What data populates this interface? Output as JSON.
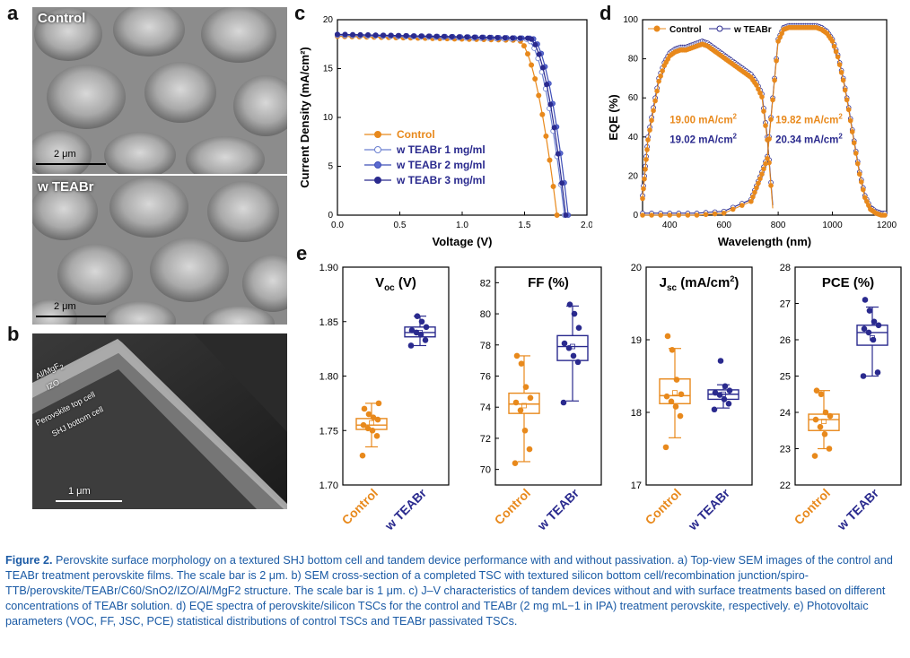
{
  "panels": {
    "a": "a",
    "b": "b",
    "c": "c",
    "d": "d",
    "e": "e"
  },
  "sem_a": {
    "top_label": "Control",
    "bottom_label": "w TEABr",
    "scale_top": "2 μm",
    "scale_bottom": "2 μm"
  },
  "sem_b": {
    "layer1": "Al/MgF",
    "layer1_sub": "2",
    "layer2": "IZO",
    "layer3": "Perovskite top cell",
    "layer4": "SHJ bottom cell",
    "scale": "1 μm"
  },
  "colors": {
    "orange": "#e8891c",
    "blue": "#2a2a8e",
    "lightblue": "#6a7fd0",
    "midblue": "#3f4fb8"
  },
  "chart_data": [
    {
      "id": "c",
      "type": "line",
      "xlabel": "Voltage (V)",
      "ylabel": "Current Density (mA/cm²)",
      "xlim": [
        0,
        2.0
      ],
      "ylim": [
        0,
        20
      ],
      "xticks": [
        "0.0",
        "0.5",
        "1.0",
        "1.5",
        "2.0"
      ],
      "yticks": [
        "0",
        "5",
        "10",
        "15",
        "20"
      ],
      "legend": "center-left",
      "series": [
        {
          "name": "Control",
          "jsc": 18.3,
          "voc": 1.76,
          "knee": 1.45
        },
        {
          "name": "w TEABr 1 mg/ml",
          "jsc": 18.4,
          "voc": 1.82,
          "knee": 1.52
        },
        {
          "name": "w TEABr 2 mg/ml",
          "jsc": 18.5,
          "voc": 1.85,
          "knee": 1.56
        },
        {
          "name": "w TEABr 3 mg/ml",
          "jsc": 18.5,
          "voc": 1.83,
          "knee": 1.54
        }
      ]
    },
    {
      "id": "d",
      "type": "line",
      "xlabel": "Wavelength (nm)",
      "ylabel": "EQE (%)",
      "xlim": [
        300,
        1200
      ],
      "ylim": [
        0,
        100
      ],
      "xticks": [
        "400",
        "600",
        "800",
        "1000",
        "1200"
      ],
      "yticks": [
        "0",
        "20",
        "40",
        "60",
        "80",
        "100"
      ],
      "legend": "top-left",
      "series": [
        {
          "name": "Control"
        },
        {
          "name": "w TEABr"
        }
      ],
      "top_cell": {
        "x": [
          300,
          310,
          320,
          340,
          360,
          380,
          400,
          420,
          440,
          460,
          480,
          500,
          520,
          540,
          560,
          580,
          600,
          620,
          640,
          660,
          680,
          700,
          720,
          740,
          760,
          780
        ],
        "y": [
          10,
          25,
          40,
          55,
          70,
          78,
          83,
          85,
          86,
          86,
          87,
          88,
          89,
          88,
          86,
          84,
          82,
          80,
          78,
          76,
          74,
          72,
          68,
          62,
          40,
          5
        ]
      },
      "bottom_cell": {
        "x": [
          300,
          400,
          500,
          600,
          700,
          720,
          740,
          760,
          780,
          800,
          820,
          840,
          860,
          880,
          900,
          920,
          940,
          960,
          980,
          1000,
          1020,
          1040,
          1060,
          1080,
          1100,
          1120,
          1140,
          1160,
          1180,
          1200
        ],
        "y": [
          1,
          1,
          1,
          2,
          8,
          15,
          22,
          30,
          60,
          90,
          96,
          97,
          97,
          97,
          97,
          97,
          97,
          96,
          94,
          90,
          82,
          70,
          55,
          38,
          22,
          10,
          4,
          2,
          1,
          1
        ]
      },
      "annotations": [
        {
          "text": "19.00 mA/cm",
          "sup": "2",
          "color": "orange"
        },
        {
          "text": "19.02 mA/cm",
          "sup": "2",
          "color": "blue"
        },
        {
          "text": "19.82 mA/cm",
          "sup": "2",
          "color": "orange"
        },
        {
          "text": "20.34 mA/cm",
          "sup": "2",
          "color": "blue"
        }
      ]
    },
    {
      "id": "e-voc",
      "type": "box",
      "title": "V",
      "title_sub": "oc",
      "title_unit": " (V)",
      "ylim": [
        1.7,
        1.9
      ],
      "yticks": [
        "1.70",
        "1.75",
        "1.80",
        "1.85",
        "1.90"
      ],
      "categories": [
        "Control",
        "w TEABr"
      ],
      "boxes": [
        {
          "q1": 1.751,
          "median": 1.755,
          "q3": 1.761,
          "whisk_lo": 1.735,
          "whisk_hi": 1.775,
          "mean": 1.757,
          "points": [
            1.727,
            1.745,
            1.75,
            1.752,
            1.755,
            1.76,
            1.762,
            1.765,
            1.77,
            1.775
          ]
        },
        {
          "q1": 1.836,
          "median": 1.84,
          "q3": 1.845,
          "whisk_lo": 1.828,
          "whisk_hi": 1.855,
          "mean": 1.84,
          "points": [
            1.828,
            1.833,
            1.838,
            1.84,
            1.842,
            1.845,
            1.85,
            1.855
          ]
        }
      ]
    },
    {
      "id": "e-ff",
      "type": "box",
      "title": "FF (%)",
      "ylim": [
        69,
        83
      ],
      "yticks": [
        "70",
        "72",
        "74",
        "76",
        "78",
        "80",
        "82"
      ],
      "categories": [
        "Control",
        "w TEABr"
      ],
      "boxes": [
        {
          "q1": 73.6,
          "median": 74.2,
          "q3": 74.9,
          "whisk_lo": 70.5,
          "whisk_hi": 77.3,
          "mean": 74.1,
          "points": [
            70.4,
            71.3,
            72.5,
            73.8,
            74.3,
            74.6,
            75.3,
            76.8,
            77.3
          ]
        },
        {
          "q1": 77.0,
          "median": 77.9,
          "q3": 78.6,
          "whisk_lo": 74.4,
          "whisk_hi": 80.5,
          "mean": 77.9,
          "points": [
            74.3,
            76.9,
            77.3,
            77.8,
            78.1,
            79.1,
            80.0,
            80.6
          ]
        }
      ]
    },
    {
      "id": "e-jsc",
      "type": "box",
      "title": "J",
      "title_sub": "sc",
      "title_unit": " (mA/cm",
      "title_sup": "2",
      "title_end": ")",
      "ylim": [
        17,
        20
      ],
      "yticks": [
        "17",
        "18",
        "19",
        "20"
      ],
      "categories": [
        "Control",
        "w TEABr"
      ],
      "boxes": [
        {
          "q1": 18.12,
          "median": 18.23,
          "q3": 18.46,
          "whisk_lo": 17.65,
          "whisk_hi": 18.88,
          "mean": 18.27,
          "points": [
            17.52,
            17.95,
            18.08,
            18.15,
            18.22,
            18.25,
            18.45,
            18.86,
            19.05
          ]
        },
        {
          "q1": 18.18,
          "median": 18.25,
          "q3": 18.31,
          "whisk_lo": 18.06,
          "whisk_hi": 18.38,
          "mean": 18.25,
          "points": [
            18.04,
            18.12,
            18.18,
            18.24,
            18.27,
            18.3,
            18.36,
            18.71
          ]
        }
      ]
    },
    {
      "id": "e-pce",
      "type": "box",
      "title": "PCE (%)",
      "ylim": [
        22,
        28
      ],
      "yticks": [
        "22",
        "23",
        "24",
        "25",
        "26",
        "27",
        "28"
      ],
      "categories": [
        "Control",
        "w TEABr"
      ],
      "boxes": [
        {
          "q1": 23.5,
          "median": 23.8,
          "q3": 23.95,
          "whisk_lo": 23.0,
          "whisk_hi": 24.6,
          "mean": 23.75,
          "points": [
            22.8,
            23.0,
            23.4,
            23.6,
            23.8,
            23.9,
            24.0,
            24.5,
            24.6
          ]
        },
        {
          "q1": 25.85,
          "median": 26.2,
          "q3": 26.4,
          "whisk_lo": 25.0,
          "whisk_hi": 26.9,
          "mean": 26.05,
          "points": [
            25.0,
            25.1,
            26.0,
            26.2,
            26.3,
            26.4,
            26.5,
            26.8,
            27.1
          ]
        }
      ]
    }
  ],
  "caption": {
    "label": "Figure 2.",
    "text": "Perovskite surface morphology on a textured SHJ bottom cell and tandem device performance with and without passivation. a) Top-view SEM images of the control and TEABr treatment perovskite films. The scale bar is 2 μm. b) SEM cross-section of a completed TSC with textured silicon bottom cell/recombination junction/spiro-TTB/perovskite/TEABr/C60/SnO2/IZO/Al/MgF2 structure. The scale bar is 1 μm. c) J–V characteristics of tandem devices without and with surface treatments based on different concentrations of TEABr solution. d) EQE spectra of perovskite/silicon TSCs for the control and TEABr (2 mg mL−1 in IPA) treatment perovskite, respectively. e) Photovoltaic parameters (VOC, FF, JSC, PCE) statistical distributions of control TSCs and TEABr passivated TSCs."
  }
}
